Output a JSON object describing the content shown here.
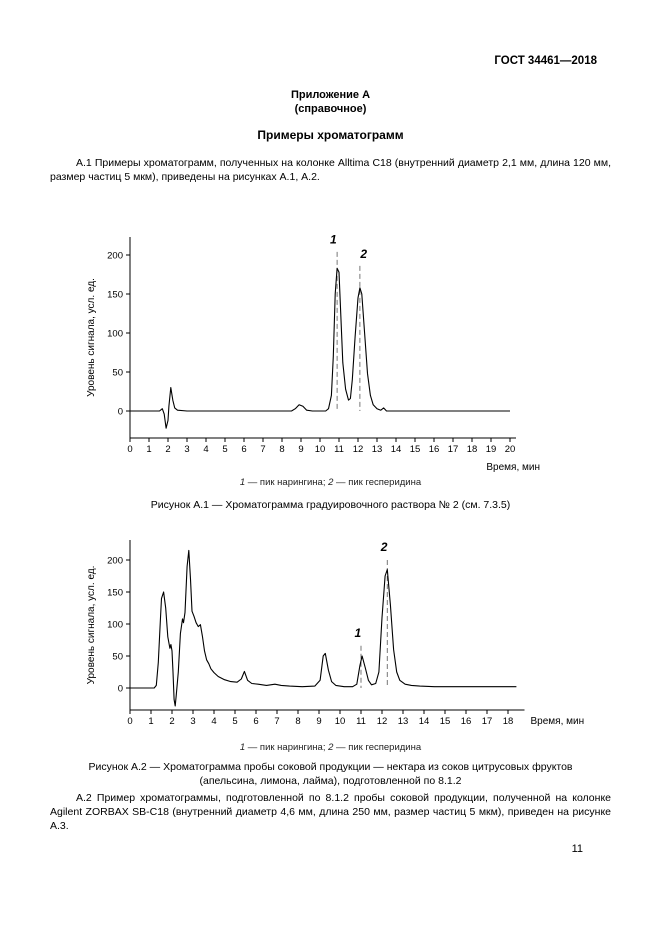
{
  "page": {
    "header_right": "ГОСТ 34461—2018",
    "appendix_title": "Приложение А",
    "appendix_subtitle": "(справочное)",
    "section_title": "Примеры хроматограмм",
    "para_a1": "А.1 Примеры хроматограмм, полученных на колонке Alltima C18 (внутренний диаметр 2,1 мм, длина 120 мм, размер частиц 5 мкм), приведены на рисунках А.1, А.2.",
    "para_a2": "А.2 Пример хроматограммы, подготовленной по 8.1.2 пробы соковой продукции, полученной на колонке Agilent ZORBAX SB-C18 (внутренний диаметр 4,6 мм, длина 250 мм, размер частиц 5 мкм), приведен на рисунке А.3.",
    "page_number": "11"
  },
  "figure1": {
    "legend": {
      "n1": "1",
      "t1": " — пик нарингина; ",
      "n2": "2",
      "t2": " — пик гесперидина"
    },
    "caption": "Рисунок А.1 — Хроматограмма градуировочного раствора № 2 (см. 7.3.5)"
  },
  "figure2": {
    "legend": {
      "n1": "1",
      "t1": " — пик нарингина; ",
      "n2": "2",
      "t2": " — пик гесперидина"
    },
    "caption": "Рисунок А.2 — Хроматограмма пробы соковой продукции — нектара из соков цитрусовых фруктов (апельсина, лимона, лайма), подготовленной по 8.1.2"
  },
  "chart_data": [
    {
      "type": "line",
      "title": "Рисунок А.1 — Хроматограмма градуировочного раствора № 2 (см. 7.3.5)",
      "xlabel": "Время, мин",
      "ylabel": "Уровень сигнала, усл. ед.",
      "xlabel_position": "below",
      "xlim": [
        0,
        20
      ],
      "ylim": [
        -30,
        230
      ],
      "x_ticks": [
        0,
        1,
        2,
        3,
        4,
        5,
        6,
        7,
        8,
        9,
        10,
        11,
        12,
        13,
        14,
        15,
        16,
        17,
        18,
        19,
        20
      ],
      "y_ticks": [
        0,
        50,
        100,
        150,
        200
      ],
      "grid": false,
      "peaks": [
        {
          "label": "1",
          "x": 10.9,
          "label_x": 10.7,
          "label_y": 215,
          "line_top": 204,
          "name": "naringin-peak",
          "height": 183
        },
        {
          "label": "2",
          "x": 12.1,
          "label_x": 12.3,
          "label_y": 196,
          "line_top": 186,
          "name": "hesperidin-peak",
          "height": 158
        }
      ],
      "trace": [
        [
          0,
          0
        ],
        [
          1.55,
          0
        ],
        [
          1.7,
          3
        ],
        [
          1.8,
          -4
        ],
        [
          1.9,
          -22
        ],
        [
          2.0,
          -12
        ],
        [
          2.05,
          6
        ],
        [
          2.15,
          30
        ],
        [
          2.25,
          14
        ],
        [
          2.35,
          4
        ],
        [
          2.5,
          1
        ],
        [
          3.0,
          0
        ],
        [
          8.5,
          0
        ],
        [
          8.7,
          3
        ],
        [
          8.9,
          8
        ],
        [
          9.1,
          6
        ],
        [
          9.3,
          1
        ],
        [
          9.6,
          0
        ],
        [
          10.3,
          0
        ],
        [
          10.45,
          3
        ],
        [
          10.6,
          20
        ],
        [
          10.7,
          70
        ],
        [
          10.8,
          150
        ],
        [
          10.9,
          183
        ],
        [
          11.0,
          178
        ],
        [
          11.1,
          120
        ],
        [
          11.2,
          62
        ],
        [
          11.35,
          28
        ],
        [
          11.5,
          14
        ],
        [
          11.6,
          16
        ],
        [
          11.7,
          40
        ],
        [
          11.85,
          95
        ],
        [
          12.0,
          145
        ],
        [
          12.1,
          158
        ],
        [
          12.2,
          150
        ],
        [
          12.35,
          100
        ],
        [
          12.5,
          48
        ],
        [
          12.65,
          20
        ],
        [
          12.8,
          8
        ],
        [
          13.0,
          3
        ],
        [
          13.2,
          1
        ],
        [
          13.35,
          4
        ],
        [
          13.5,
          0
        ],
        [
          14,
          0
        ],
        [
          20,
          0
        ]
      ]
    },
    {
      "type": "line",
      "title": "Рисунок А.2 — Хроматограмма пробы соковой продукции — нектара из соков цитрусовых фруктов (апельсина, лимона, лайма), подготовленной по 8.1.2",
      "xlabel": "Время, мин",
      "ylabel": "Уровень сигнала, усл. ед.",
      "xlabel_position": "inline",
      "xlim": [
        0,
        18.5
      ],
      "ylim": [
        -35,
        230
      ],
      "x_ticks": [
        0,
        1,
        2,
        3,
        4,
        5,
        6,
        7,
        8,
        9,
        10,
        11,
        12,
        13,
        14,
        15,
        16,
        17,
        18
      ],
      "y_ticks": [
        0,
        50,
        100,
        150,
        200
      ],
      "grid": false,
      "peaks": [
        {
          "label": "1",
          "x": 11.0,
          "label_x": 10.85,
          "label_y": 80,
          "line_top": 66,
          "name": "naringin-peak",
          "height": 50
        },
        {
          "label": "2",
          "x": 12.25,
          "label_x": 12.1,
          "label_y": 214,
          "line_top": 200,
          "name": "hesperidin-peak",
          "height": 185
        }
      ],
      "trace": [
        [
          0,
          0
        ],
        [
          1.15,
          0
        ],
        [
          1.25,
          4
        ],
        [
          1.35,
          40
        ],
        [
          1.45,
          110
        ],
        [
          1.5,
          140
        ],
        [
          1.6,
          150
        ],
        [
          1.7,
          125
        ],
        [
          1.8,
          80
        ],
        [
          1.9,
          62
        ],
        [
          1.95,
          68
        ],
        [
          2.0,
          58
        ],
        [
          2.05,
          25
        ],
        [
          2.1,
          -18
        ],
        [
          2.15,
          -28
        ],
        [
          2.2,
          -12
        ],
        [
          2.3,
          25
        ],
        [
          2.4,
          85
        ],
        [
          2.5,
          108
        ],
        [
          2.55,
          102
        ],
        [
          2.62,
          118
        ],
        [
          2.72,
          190
        ],
        [
          2.8,
          215
        ],
        [
          2.88,
          170
        ],
        [
          2.95,
          120
        ],
        [
          3.05,
          112
        ],
        [
          3.15,
          102
        ],
        [
          3.25,
          96
        ],
        [
          3.35,
          99
        ],
        [
          3.45,
          80
        ],
        [
          3.55,
          58
        ],
        [
          3.65,
          44
        ],
        [
          3.75,
          38
        ],
        [
          3.85,
          30
        ],
        [
          4.0,
          24
        ],
        [
          4.2,
          18
        ],
        [
          4.5,
          13
        ],
        [
          4.8,
          10
        ],
        [
          5.1,
          9
        ],
        [
          5.3,
          14
        ],
        [
          5.45,
          26
        ],
        [
          5.6,
          12
        ],
        [
          5.8,
          7
        ],
        [
          6.1,
          6
        ],
        [
          6.5,
          4
        ],
        [
          6.9,
          6
        ],
        [
          7.2,
          4
        ],
        [
          7.6,
          3
        ],
        [
          8.2,
          2
        ],
        [
          8.8,
          3
        ],
        [
          9.05,
          12
        ],
        [
          9.2,
          50
        ],
        [
          9.3,
          54
        ],
        [
          9.45,
          28
        ],
        [
          9.6,
          10
        ],
        [
          9.8,
          4
        ],
        [
          10.2,
          2
        ],
        [
          10.6,
          2
        ],
        [
          10.8,
          6
        ],
        [
          10.95,
          35
        ],
        [
          11.05,
          50
        ],
        [
          11.2,
          32
        ],
        [
          11.35,
          12
        ],
        [
          11.5,
          5
        ],
        [
          11.7,
          7
        ],
        [
          11.85,
          25
        ],
        [
          12.0,
          110
        ],
        [
          12.15,
          175
        ],
        [
          12.25,
          185
        ],
        [
          12.4,
          130
        ],
        [
          12.55,
          60
        ],
        [
          12.7,
          25
        ],
        [
          12.85,
          12
        ],
        [
          13.1,
          6
        ],
        [
          13.4,
          4
        ],
        [
          13.8,
          3
        ],
        [
          14.5,
          2
        ],
        [
          15.5,
          2
        ],
        [
          16.5,
          2
        ],
        [
          17.5,
          2
        ],
        [
          18.4,
          2
        ]
      ]
    }
  ]
}
